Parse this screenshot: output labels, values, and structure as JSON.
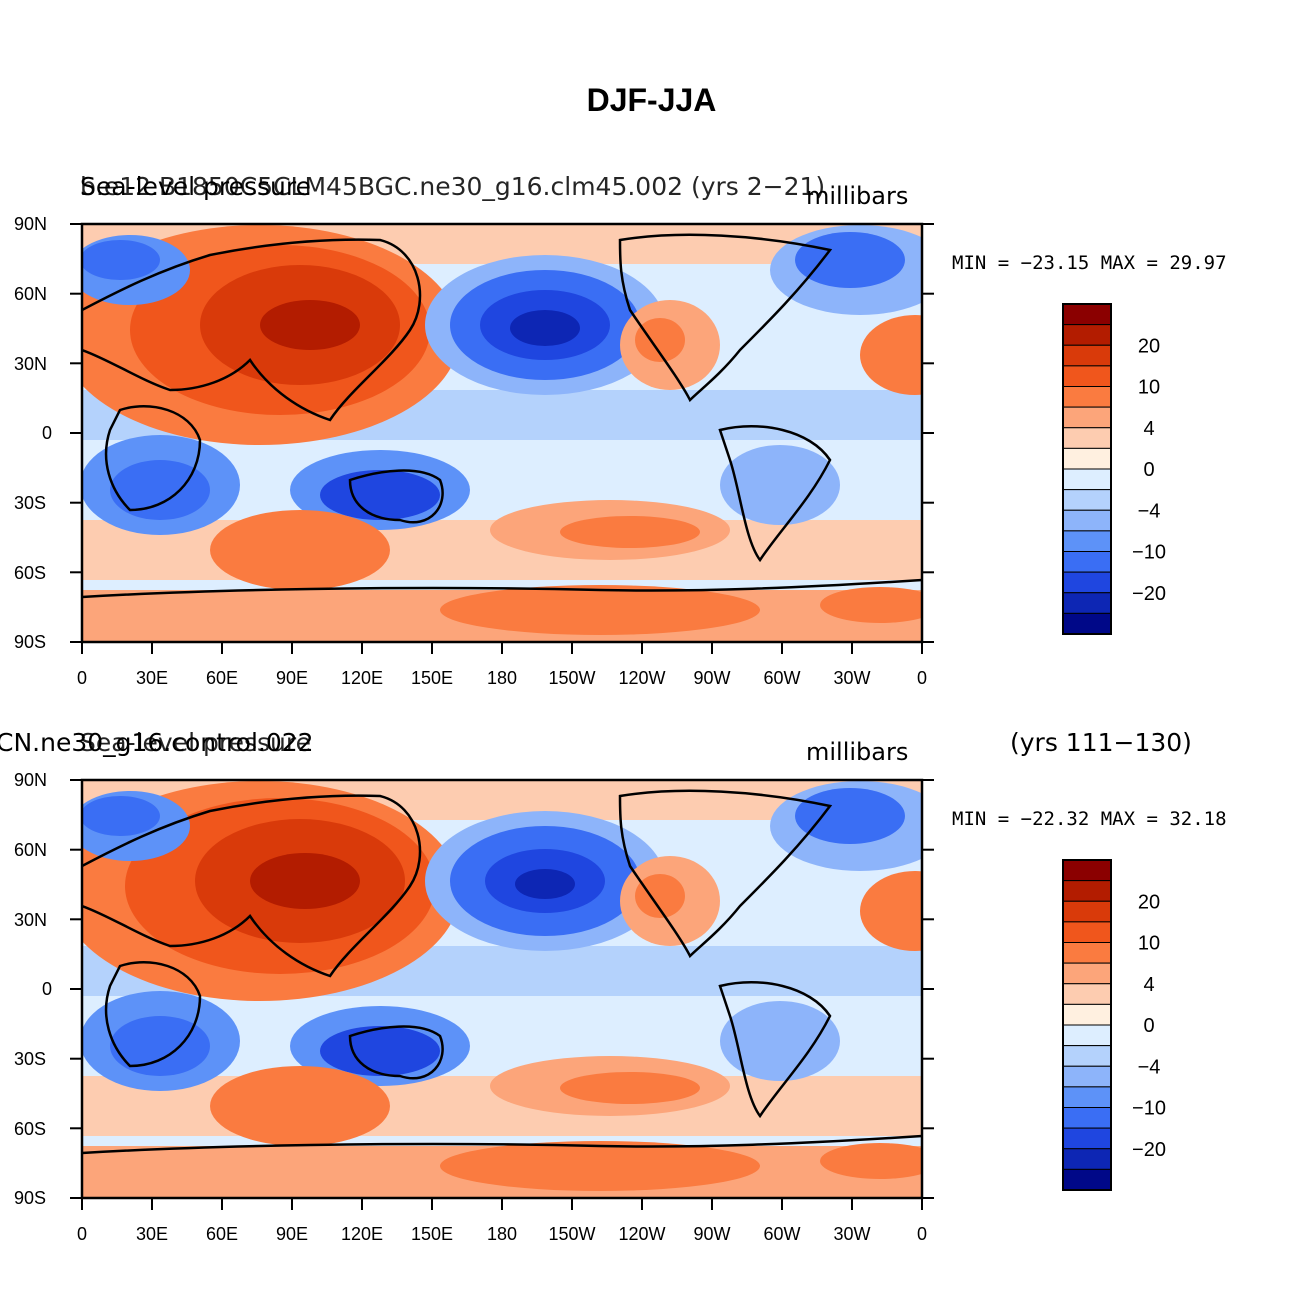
{
  "title": "DJF-JJA",
  "colorbar": {
    "levels": [
      "20",
      "10",
      "4",
      "0",
      "−4",
      "−10",
      "−20"
    ],
    "colors": [
      "#8b0000",
      "#b31c00",
      "#d93a0a",
      "#f0561c",
      "#fa7b40",
      "#fca57a",
      "#fdccb0",
      "#fff0e0",
      "#ddeeff",
      "#b4d2fc",
      "#8db4fa",
      "#5d92f8",
      "#3a6ef4",
      "#1f46e0",
      "#0d26b4",
      "#000888"
    ]
  },
  "panels": [
    {
      "id": "top",
      "case_left": "Sea-level pressure",
      "case_right": "b.e12.B1850C5CLM45BGC.ne30_g16.clm45.002  (yrs  2−21)",
      "units": "millibars",
      "minmax": "MIN = −23.15 MAX =  29.97",
      "years": ""
    },
    {
      "id": "bottom",
      "case_left": "Sea-level pressure",
      "case_right": "CN.ne30_g16.control.022",
      "units": "millibars",
      "minmax": "MIN = −22.32 MAX =  32.18",
      "years": "(yrs  111−130)"
    }
  ],
  "axes": {
    "y_ticks": [
      "90N",
      "60N",
      "30N",
      "0",
      "30S",
      "60S",
      "90S"
    ],
    "x_ticks": [
      "0",
      "30E",
      "60E",
      "90E",
      "120E",
      "150E",
      "180",
      "150W",
      "120W",
      "90W",
      "60W",
      "30W",
      "0"
    ]
  },
  "chart_data": [
    {
      "type": "heatmap",
      "title": "Sea-level pressure",
      "units": "millibars",
      "xlim": [
        0,
        360
      ],
      "ylim": [
        -90,
        90
      ],
      "min": -23.15,
      "max": 29.97,
      "levels": [
        -20,
        -10,
        -4,
        0,
        4,
        10,
        20
      ]
    },
    {
      "type": "heatmap",
      "title": "Sea-level pressure",
      "units": "millibars",
      "xlim": [
        0,
        360
      ],
      "ylim": [
        -90,
        90
      ],
      "min": -22.32,
      "max": 32.18,
      "levels": [
        -20,
        -10,
        -4,
        0,
        4,
        10,
        20
      ]
    }
  ]
}
